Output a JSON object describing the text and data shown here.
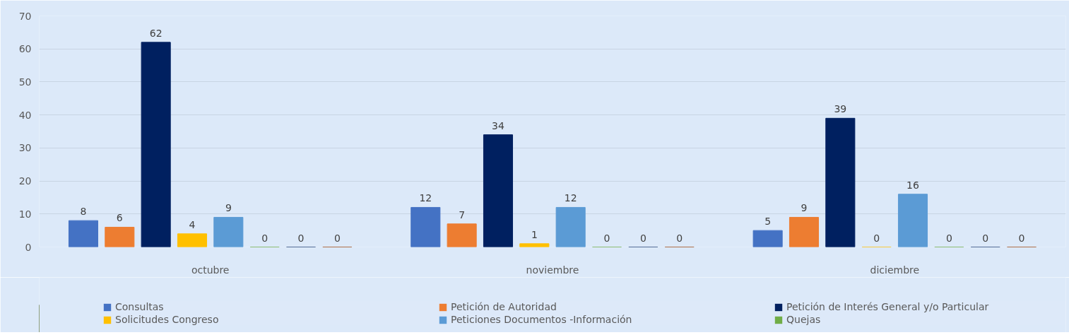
{
  "chart_data": {
    "type": "bar",
    "categories": [
      "octubre",
      "noviembre",
      "diciembre"
    ],
    "series": [
      {
        "name": "Consultas",
        "color": "#4472c4",
        "values": [
          8,
          12,
          5
        ]
      },
      {
        "name": "Petición de Autoridad",
        "color": "#ed7d31",
        "values": [
          6,
          7,
          9
        ]
      },
      {
        "name": "Petición de Interés General y/o Particular",
        "color": "#002060",
        "values": [
          62,
          34,
          39
        ]
      },
      {
        "name": "Solicitudes Congreso",
        "color": "#ffc000",
        "values": [
          4,
          1,
          0
        ]
      },
      {
        "name": "Peticiones Documentos -Información",
        "color": "#5b9bd5",
        "values": [
          9,
          12,
          16
        ]
      },
      {
        "name": "Quejas",
        "color": "#70ad47",
        "values": [
          0,
          0,
          0
        ]
      },
      {
        "color": "#264478",
        "values": [
          0,
          0,
          0
        ]
      },
      {
        "color": "#9e480e",
        "values": [
          0,
          0,
          0
        ]
      }
    ],
    "ylim": [
      0,
      70
    ],
    "yticks": [
      0,
      10,
      20,
      30,
      40,
      50,
      60,
      70
    ],
    "grid": "y",
    "legend": "bottom",
    "data_labels": true
  }
}
